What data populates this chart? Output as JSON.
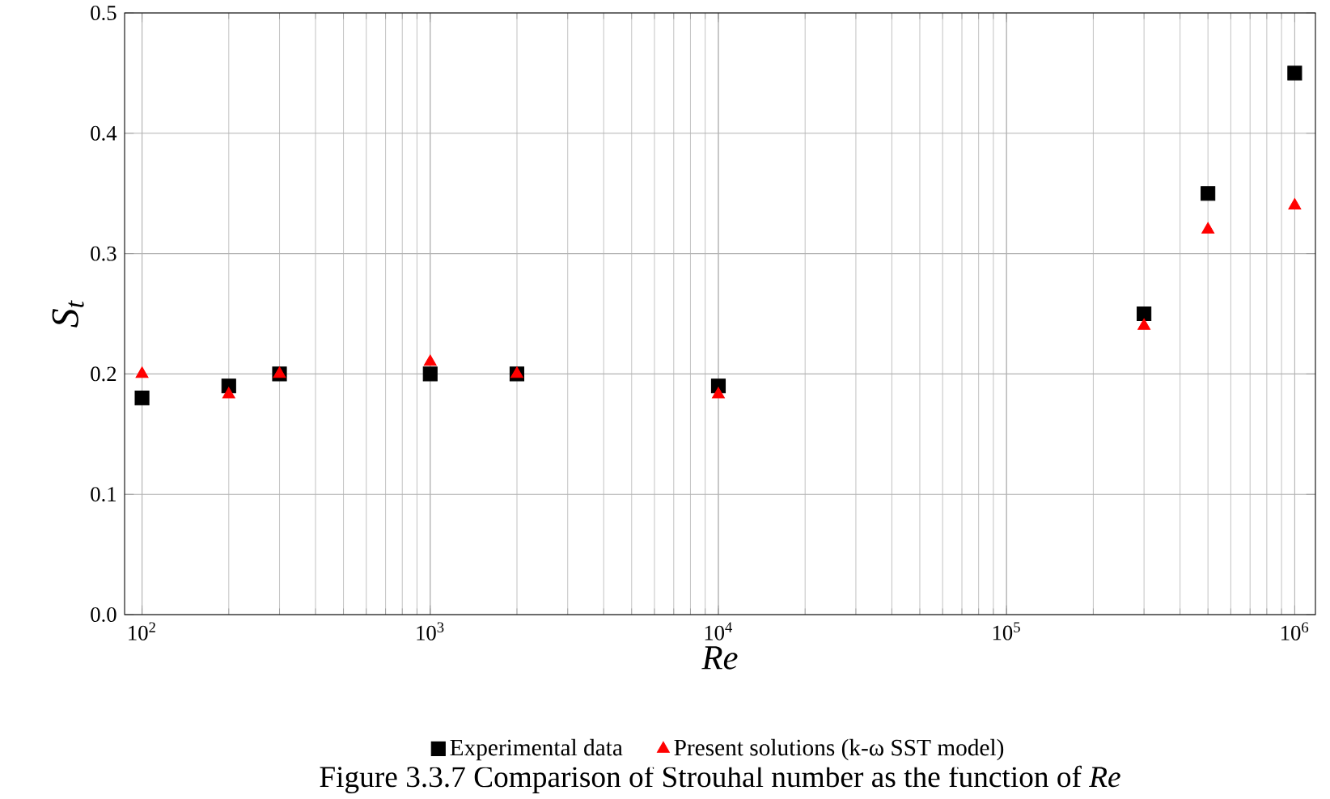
{
  "chart_data": {
    "type": "scatter",
    "xlabel": "*Re*",
    "ylabel": "*S$_{t}$*",
    "x": [
      100,
      200,
      300,
      1000,
      2000,
      10000,
      300000,
      500000,
      1000000
    ],
    "series": [
      {
        "name": "Experimental data",
        "color": "#000000",
        "marker": "square",
        "values": [
          0.18,
          0.19,
          0.2,
          0.2,
          0.2,
          0.19,
          0.25,
          0.35,
          0.45
        ]
      },
      {
        "name": "Present solutions (k-ω SST model)",
        "color": "#ff0000",
        "marker": "triangle",
        "values": [
          0.2,
          0.183,
          0.2,
          0.21,
          0.2,
          0.183,
          0.24,
          0.32,
          0.34
        ]
      }
    ],
    "log": "x",
    "xlim": [
      87,
      1180000
    ],
    "ylim": [
      0,
      0.5
    ],
    "xticks": [
      {
        "value": 100,
        "label": "10$^{2}$"
      },
      {
        "value": 1000,
        "label": "10$^{3}$"
      },
      {
        "value": 10000,
        "label": "10$^{4}$"
      },
      {
        "value": 100000,
        "label": "10$^{5}$"
      },
      {
        "value": 1000000,
        "label": "10$^{6}$"
      }
    ],
    "yticks": [
      {
        "value": 0,
        "label": "0.0"
      },
      0.1,
      0.2,
      0.3,
      0.4,
      0.5
    ],
    "grid": true,
    "legend": "bottom",
    "annotations": [
      "Figure 3.3.7 Comparison of Strouhal number as the function of *Re*"
    ]
  }
}
